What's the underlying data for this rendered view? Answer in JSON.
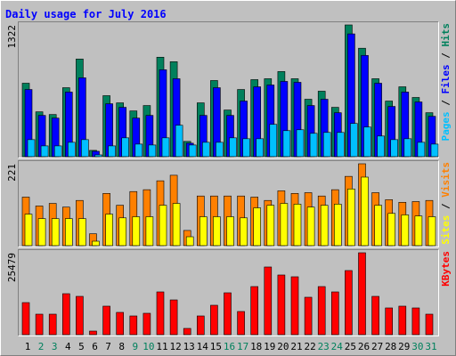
{
  "chart_data": [
    {
      "type": "bar",
      "title": "Daily usage for July 2016",
      "ylim": [
        0,
        1322
      ],
      "yticks": [
        1322
      ],
      "series": [
        {
          "name": "Hits",
          "color": "#00805c",
          "values": [
            737,
            450,
            423,
            692,
            980,
            63,
            612,
            540,
            459,
            513,
            998,
            953,
            153,
            540,
            764,
            468,
            674,
            773,
            782,
            854,
            782,
            576,
            657,
            495,
            1322,
            1088,
            782,
            558,
            701,
            594,
            441
          ]
        },
        {
          "name": "Files",
          "color": "#0000ff",
          "values": [
            674,
            414,
            387,
            648,
            791,
            54,
            531,
            495,
            387,
            414,
            872,
            782,
            135,
            414,
            692,
            414,
            558,
            701,
            719,
            755,
            746,
            513,
            576,
            441,
            1232,
            1016,
            737,
            504,
            648,
            549,
            405
          ]
        },
        {
          "name": "Pages",
          "color": "#00c0ff",
          "values": [
            171,
            108,
            108,
            144,
            171,
            18,
            108,
            189,
            126,
            117,
            189,
            315,
            117,
            144,
            144,
            189,
            180,
            180,
            324,
            261,
            270,
            234,
            243,
            243,
            333,
            297,
            207,
            171,
            180,
            144,
            126
          ]
        }
      ]
    },
    {
      "type": "bar",
      "ylim": [
        0,
        221
      ],
      "yticks": [
        221
      ],
      "series": [
        {
          "name": "Visits",
          "color": "#ff8000",
          "values": [
            131,
            107,
            114,
            104,
            122,
            32,
            141,
            109,
            146,
            151,
            175,
            190,
            41,
            134,
            134,
            134,
            134,
            131,
            122,
            148,
            141,
            143,
            134,
            151,
            187,
            221,
            143,
            124,
            117,
            119,
            122
          ]
        },
        {
          "name": "Sites",
          "color": "#ffff00",
          "values": [
            85,
            73,
            73,
            73,
            73,
            12,
            85,
            75,
            78,
            78,
            109,
            114,
            24,
            78,
            78,
            78,
            75,
            102,
            109,
            114,
            112,
            104,
            109,
            112,
            153,
            185,
            109,
            87,
            83,
            80,
            78
          ]
        }
      ]
    },
    {
      "type": "bar",
      "ylim": [
        0,
        25479
      ],
      "yticks": [
        25479
      ],
      "categories": [
        "1",
        "2",
        "3",
        "4",
        "5",
        "6",
        "7",
        "8",
        "9",
        "10",
        "11",
        "12",
        "13",
        "14",
        "15",
        "16",
        "17",
        "18",
        "19",
        "20",
        "21",
        "22",
        "23",
        "24",
        "25",
        "26",
        "27",
        "28",
        "29",
        "30",
        "31"
      ],
      "category_colors": [
        "#000000",
        "#00805c",
        "#00805c",
        "#000000",
        "#000000",
        "#000000",
        "#000000",
        "#000000",
        "#00805c",
        "#00805c",
        "#000000",
        "#000000",
        "#000000",
        "#000000",
        "#000000",
        "#00805c",
        "#00805c",
        "#000000",
        "#000000",
        "#000000",
        "#000000",
        "#000000",
        "#00805c",
        "#00805c",
        "#000000",
        "#000000",
        "#000000",
        "#000000",
        "#000000",
        "#00805c",
        "#00805c"
      ],
      "series": [
        {
          "name": "KBytes",
          "color": "#ff0000",
          "values": [
            9972,
            6371,
            6371,
            12742,
            11911,
            1108,
            8864,
            6925,
            5817,
            6648,
            13296,
            10803,
            1939,
            5817,
            9141,
            13019,
            7202,
            14958,
            21052,
            18559,
            18005,
            11634,
            14958,
            13296,
            19944,
            25479,
            11911,
            8310,
            8864,
            8310,
            6371
          ]
        }
      ]
    }
  ]
}
